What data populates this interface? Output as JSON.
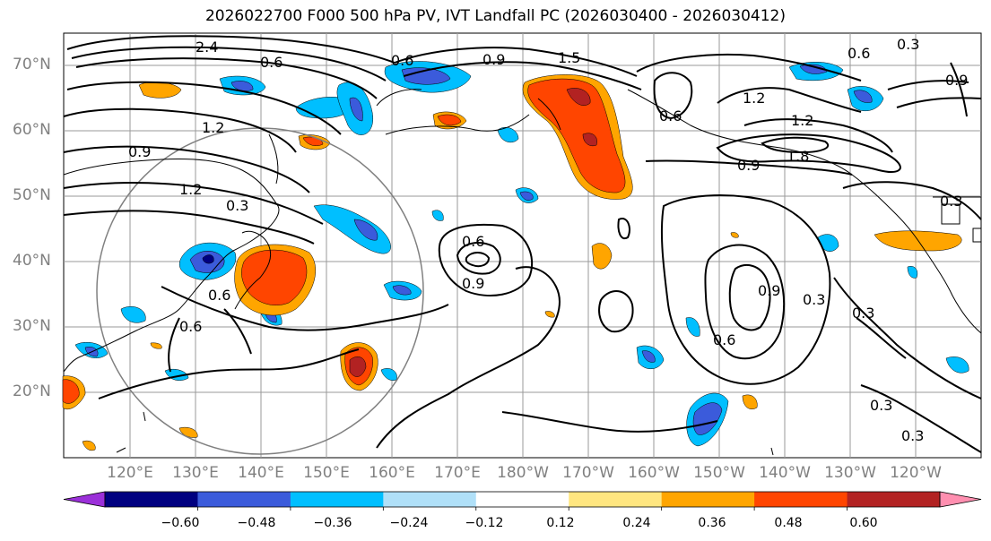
{
  "title": "2026022700 F000 500 hPa PV, IVT Landfall PC (2026030400 - 2026030412)",
  "lat_labels": [
    "70°N",
    "60°N",
    "50°N",
    "40°N",
    "30°N",
    "20°N"
  ],
  "lon_labels": [
    "120°E",
    "130°E",
    "140°E",
    "150°E",
    "160°E",
    "170°E",
    "180°W",
    "170°W",
    "160°W",
    "150°W",
    "140°W",
    "130°W",
    "120°W"
  ],
  "contour_labels": [
    "2.4",
    "1.2",
    "0.6",
    "1.5",
    "0.6",
    "0.3",
    "0.6",
    "0.9",
    "0.6",
    "1.2",
    "1.2",
    "0.9",
    "1.8",
    "0.9",
    "1.2",
    "0.3",
    "0.6",
    "0.9",
    "0.6",
    "0.9",
    "0.6",
    "0.3",
    "0.3",
    "0.3",
    "0.3",
    "0.6",
    "0.9",
    "0.3"
  ],
  "colorbar": {
    "colors": [
      "#9b30d9",
      "#000080",
      "#3b5bdb",
      "#00bfff",
      "#b0e0f8",
      "#ffffff",
      "#ffe680",
      "#ffa500",
      "#ff4500",
      "#b22222",
      "#ff8fb0"
    ],
    "tick_labels": [
      "−0.60",
      "−0.48",
      "−0.36",
      "−0.24",
      "−0.12",
      "0.12",
      "0.24",
      "0.36",
      "0.48",
      "0.60"
    ]
  }
}
